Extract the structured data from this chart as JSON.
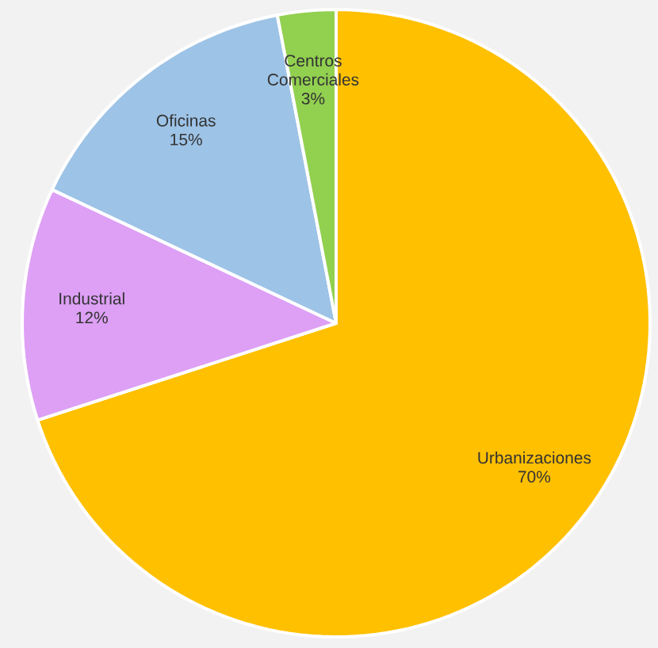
{
  "chart_data": {
    "type": "pie",
    "categories": [
      "Urbanizaciones",
      "Industrial",
      "Oficinas",
      "Centros Comerciales"
    ],
    "values": [
      70,
      12,
      15,
      3
    ],
    "colors": [
      "#ffc000",
      "#dda0f5",
      "#9dc3e6",
      "#92d050"
    ],
    "value_labels": [
      "70%",
      "12%",
      "15%",
      "3%"
    ]
  }
}
